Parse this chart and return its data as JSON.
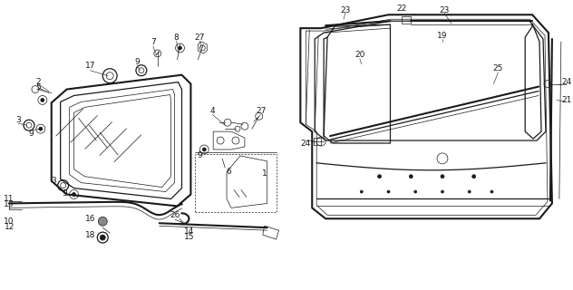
{
  "background_color": "#ffffff",
  "line_color": "#1a1a1a",
  "fig_width": 6.32,
  "fig_height": 3.2,
  "dpi": 100
}
